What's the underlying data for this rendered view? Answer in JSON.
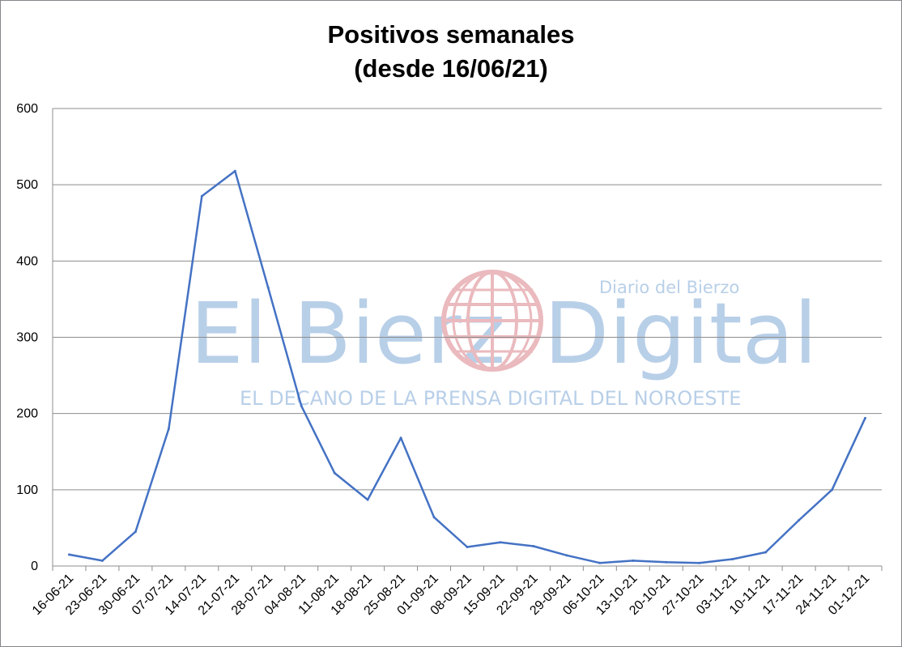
{
  "chart_data": {
    "type": "line",
    "title": "Positivos semanales",
    "subtitle": "(desde 16/06/21)",
    "xlabel": "",
    "ylabel": "",
    "ylim": [
      0,
      600
    ],
    "yticks": [
      0,
      100,
      200,
      300,
      400,
      500,
      600
    ],
    "grid": true,
    "legend": "none",
    "categories": [
      "16-06-21",
      "23-06-21",
      "30-06-21",
      "07-07-21",
      "14-07-21",
      "21-07-21",
      "28-07-21",
      "04-08-21",
      "11-08-21",
      "18-08-21",
      "25-08-21",
      "01-09-21",
      "08-09-21",
      "15-09-21",
      "22-09-21",
      "29-09-21",
      "06-10-21",
      "13-10-21",
      "20-10-21",
      "27-10-21",
      "03-11-21",
      "10-11-21",
      "17-11-21",
      "24-11-21",
      "01-12-21"
    ],
    "series": [
      {
        "color": "#4472c4",
        "values": [
          15,
          7,
          45,
          180,
          485,
          518,
          365,
          210,
          122,
          87,
          168,
          64,
          25,
          31,
          26,
          14,
          4,
          7,
          5,
          4,
          9,
          18,
          60,
          100,
          194
        ]
      }
    ]
  },
  "watermark": {
    "brand": "El Bierz",
    "brand_end": "Digital",
    "tagline": "Diario del Bierzo",
    "slogan": "EL DECANO DE LA PRENSA DIGITAL DEL NOROESTE",
    "color": "#7fa8d6",
    "globe_color": "#d9828a"
  }
}
